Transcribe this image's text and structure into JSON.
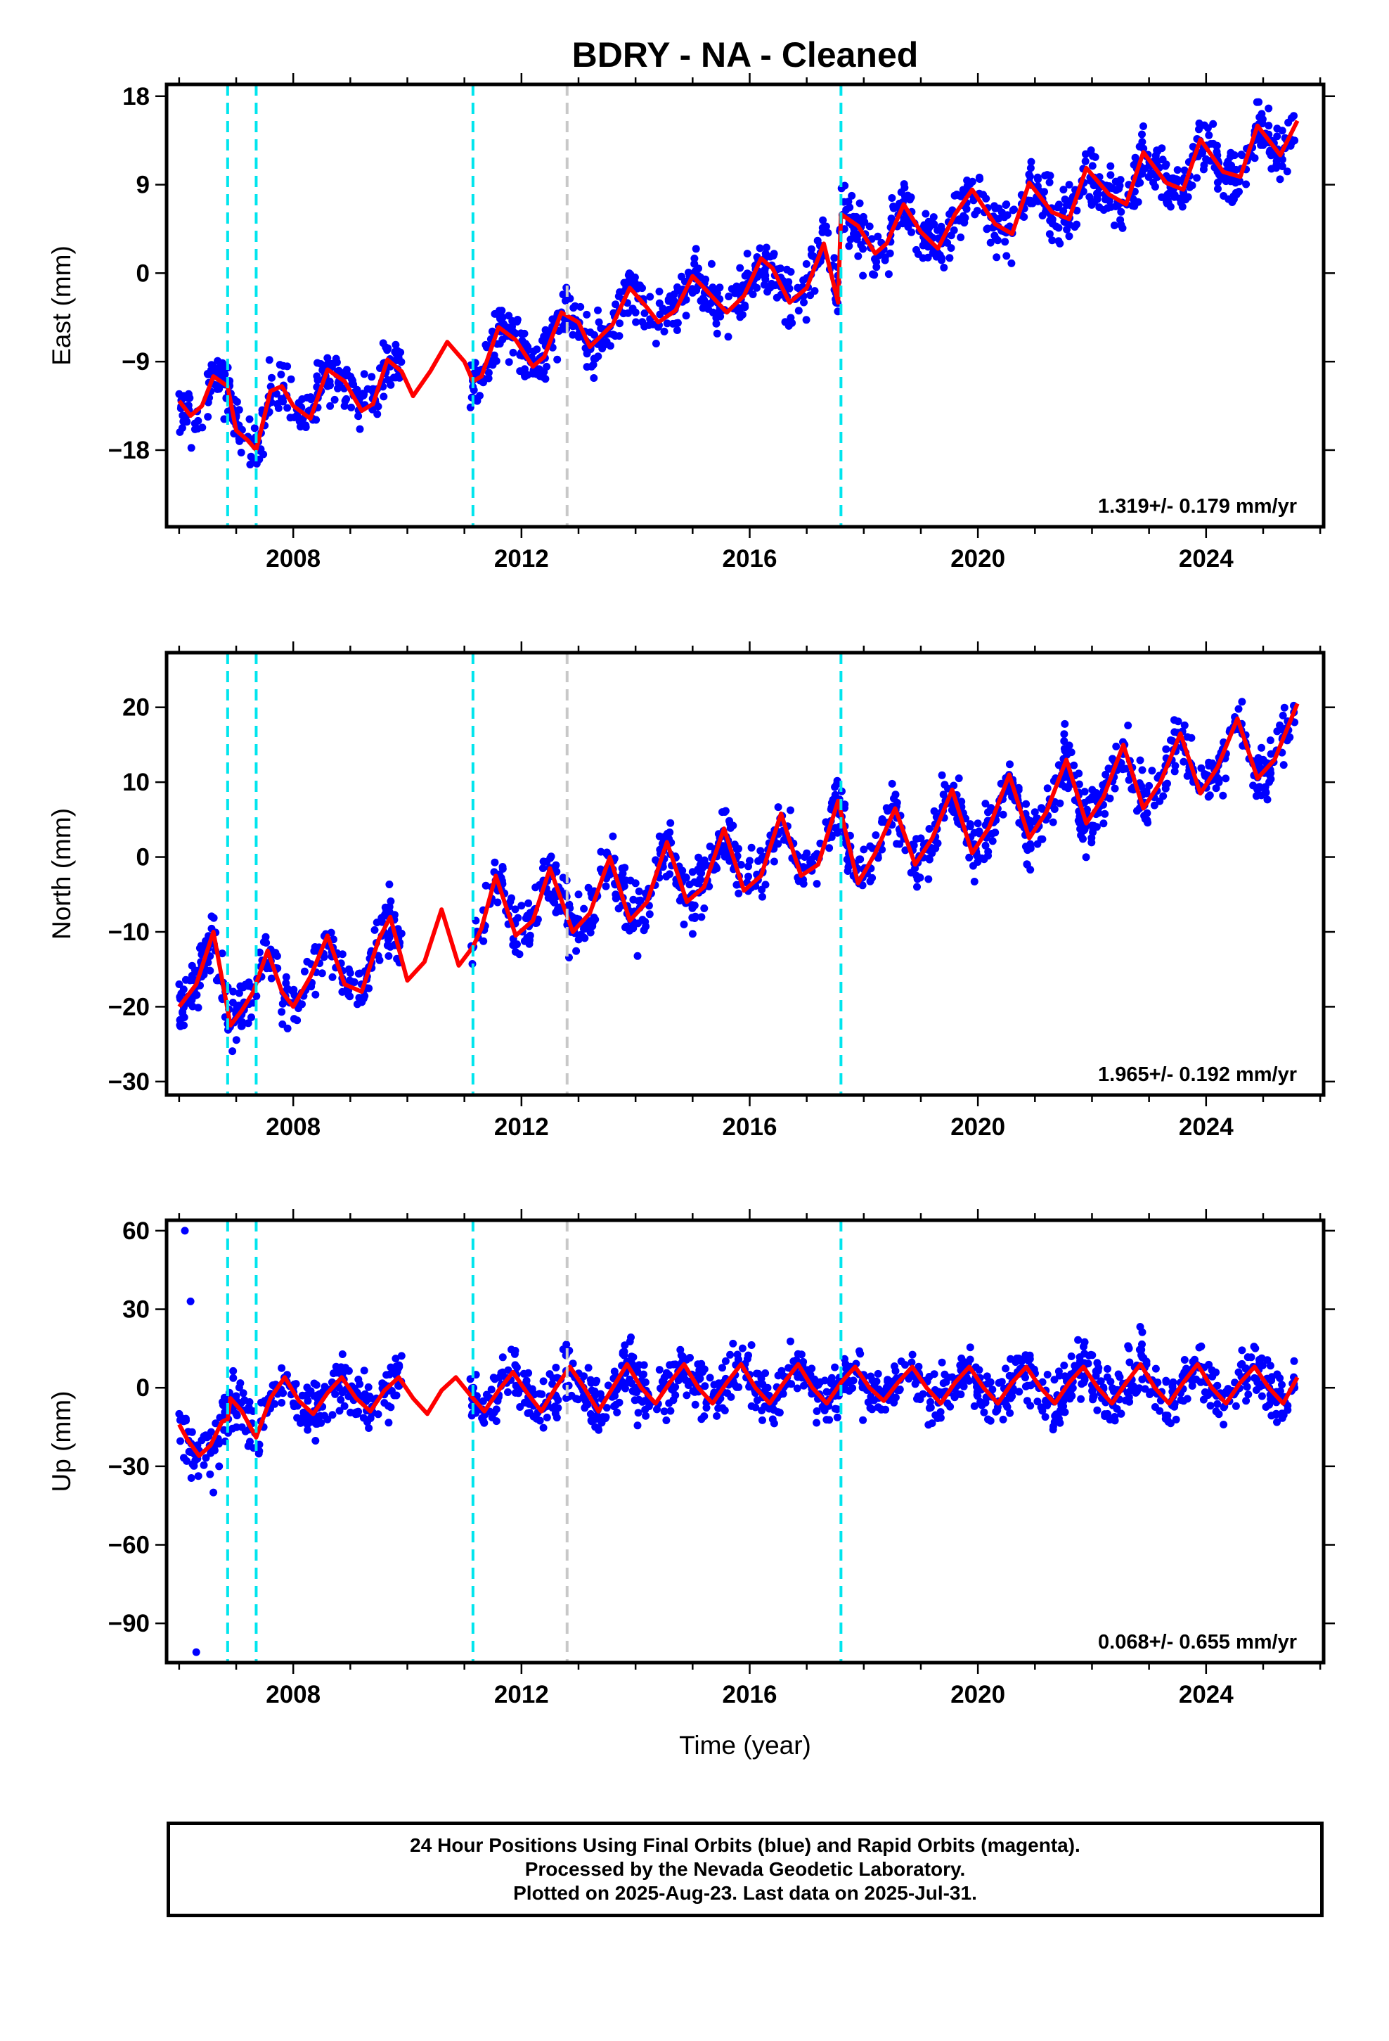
{
  "title": "BDRY  - NA - Cleaned",
  "footer": {
    "lines": [
      "24 Hour Positions Using Final Orbits (blue) and Rapid Orbits (magenta).",
      "Processed by the Nevada Geodetic Laboratory.",
      "Plotted on 2025-Aug-23. Last data on 2025-Jul-31."
    ]
  },
  "colors": {
    "observations": "#0000ff",
    "model_fit": "#ff0000",
    "equipment_change": "#00e5ee",
    "other_event": "#c8c8c8",
    "frame": "#000000"
  },
  "chart_data": [
    {
      "type": "scatter",
      "ylabel": "East (mm)",
      "xlabel": "",
      "xlim": [
        2005.78,
        2026.06
      ],
      "ylim": [
        -25.8,
        19.2
      ],
      "xticks": [
        2008,
        2012,
        2016,
        2020,
        2024
      ],
      "yticks": [
        -18,
        -9,
        0,
        9,
        18
      ],
      "grid": false,
      "rate_label": "1.319+/- 0.179 mm/yr",
      "events": [
        {
          "x": 2006.85,
          "kind": "equipment"
        },
        {
          "x": 2007.35,
          "kind": "equipment"
        },
        {
          "x": 2011.15,
          "kind": "equipment"
        },
        {
          "x": 2012.8,
          "kind": "other"
        },
        {
          "x": 2017.6,
          "kind": "equipment"
        }
      ],
      "series": [
        {
          "role": "observations",
          "x": [
            2006.0,
            2007.0,
            2007.5,
            2008.6,
            2009.7,
            2011.2,
            2012.0,
            2013.0,
            2014.0,
            2015.0,
            2016.0,
            2017.0,
            2017.6,
            2018.5,
            2019.5,
            2020.5,
            2021.5,
            2022.5,
            2023.5,
            2024.5,
            2025.55
          ],
          "y": [
            -12.3,
            -14.5,
            -15.5,
            -11.5,
            -9.5,
            -10.5,
            -7.0,
            -5.5,
            -4.0,
            -2.0,
            -1.5,
            -0.5,
            4.5,
            5.0,
            6.0,
            7.0,
            8.5,
            9.5,
            10.5,
            12.0,
            13.5
          ]
        },
        {
          "role": "model",
          "x": [
            2006.0,
            2006.2,
            2006.4,
            2006.6,
            2006.85,
            2007.0,
            2007.2,
            2007.35,
            2007.6,
            2007.8,
            2008.0,
            2008.3,
            2008.6,
            2008.9,
            2009.2,
            2009.4,
            2009.65,
            2009.9,
            2010.1,
            2010.4,
            2010.7,
            2011.0,
            2011.15,
            2011.3,
            2011.6,
            2011.9,
            2012.2,
            2012.4,
            2012.7,
            2013.0,
            2013.2,
            2013.6,
            2013.9,
            2014.2,
            2014.4,
            2014.7,
            2015.0,
            2015.2,
            2015.6,
            2015.9,
            2016.2,
            2016.4,
            2016.7,
            2017.0,
            2017.3,
            2017.55,
            2017.6,
            2017.9,
            2018.2,
            2018.4,
            2018.7,
            2019.0,
            2019.3,
            2019.6,
            2019.9,
            2020.3,
            2020.6,
            2020.9,
            2021.3,
            2021.6,
            2021.9,
            2022.3,
            2022.6,
            2022.9,
            2023.3,
            2023.6,
            2023.9,
            2024.3,
            2024.6,
            2024.9,
            2025.3,
            2025.6
          ],
          "y": [
            -13.0,
            -14.5,
            -13.5,
            -10.5,
            -11.5,
            -16.0,
            -17.0,
            -18.0,
            -12.0,
            -11.5,
            -13.5,
            -14.8,
            -9.8,
            -11.0,
            -14.0,
            -13.3,
            -8.8,
            -10.0,
            -12.5,
            -10.0,
            -7.0,
            -9.0,
            -11.0,
            -10.5,
            -5.5,
            -6.8,
            -9.5,
            -8.5,
            -4.0,
            -5.0,
            -7.5,
            -5.2,
            -1.5,
            -3.5,
            -5.0,
            -3.8,
            -0.3,
            -1.5,
            -4.0,
            -2.3,
            1.5,
            0.5,
            -3.0,
            -1.5,
            3.0,
            -3.0,
            6.0,
            4.8,
            2.0,
            3.0,
            7.0,
            4.2,
            2.5,
            6.0,
            8.5,
            5.0,
            4.0,
            9.2,
            6.2,
            5.5,
            10.7,
            8.0,
            7.0,
            12.3,
            9.2,
            8.5,
            13.6,
            10.3,
            9.8,
            15.0,
            12.0,
            15.5
          ]
        }
      ]
    },
    {
      "type": "scatter",
      "ylabel": "North (mm)",
      "xlabel": "",
      "xlim": [
        2005.78,
        2026.06
      ],
      "ylim": [
        -31.8,
        27.3
      ],
      "xticks": [
        2008,
        2012,
        2016,
        2020,
        2024
      ],
      "yticks": [
        -30,
        -20,
        -10,
        0,
        10,
        20
      ],
      "grid": false,
      "rate_label": "1.965+/- 0.192 mm/yr",
      "events": [
        {
          "x": 2006.85,
          "kind": "equipment"
        },
        {
          "x": 2007.35,
          "kind": "equipment"
        },
        {
          "x": 2011.15,
          "kind": "equipment"
        },
        {
          "x": 2012.8,
          "kind": "other"
        },
        {
          "x": 2017.6,
          "kind": "equipment"
        }
      ],
      "series": [
        {
          "role": "observations",
          "x": [
            2006.0,
            2007.0,
            2008.0,
            2009.0,
            2009.7,
            2011.2,
            2012.0,
            2013.0,
            2014.0,
            2015.0,
            2016.0,
            2017.0,
            2018.0,
            2019.0,
            2020.0,
            2021.0,
            2022.0,
            2023.0,
            2024.0,
            2025.0,
            2025.55
          ],
          "y": [
            -17.0,
            -21.0,
            -18.0,
            -15.5,
            -12.0,
            -8.5,
            -6.5,
            -5.0,
            -3.5,
            -2.0,
            -0.5,
            0.5,
            1.0,
            2.5,
            4.5,
            6.0,
            8.0,
            9.5,
            11.0,
            13.0,
            18.0
          ]
        },
        {
          "role": "model",
          "x": [
            2006.0,
            2006.3,
            2006.6,
            2006.9,
            2007.1,
            2007.3,
            2007.55,
            2007.8,
            2008.0,
            2008.3,
            2008.6,
            2008.9,
            2009.2,
            2009.5,
            2009.7,
            2010.0,
            2010.3,
            2010.6,
            2010.9,
            2011.15,
            2011.3,
            2011.55,
            2011.9,
            2012.2,
            2012.5,
            2012.9,
            2013.2,
            2013.55,
            2013.9,
            2014.2,
            2014.55,
            2014.9,
            2015.2,
            2015.55,
            2015.9,
            2016.2,
            2016.55,
            2016.9,
            2017.2,
            2017.55,
            2017.9,
            2018.2,
            2018.55,
            2018.9,
            2019.2,
            2019.55,
            2019.9,
            2020.2,
            2020.55,
            2020.9,
            2021.2,
            2021.55,
            2021.9,
            2022.2,
            2022.55,
            2022.9,
            2023.2,
            2023.55,
            2023.9,
            2024.2,
            2024.55,
            2024.9,
            2025.2,
            2025.6
          ],
          "y": [
            -20.0,
            -17.0,
            -10.0,
            -22.5,
            -20.5,
            -18.0,
            -12.5,
            -18.0,
            -20.0,
            -16.0,
            -10.5,
            -17.0,
            -18.0,
            -11.0,
            -8.0,
            -16.5,
            -14.0,
            -7.0,
            -14.5,
            -12.0,
            -9.5,
            -2.5,
            -10.5,
            -8.5,
            -1.5,
            -10.0,
            -7.5,
            0.0,
            -8.5,
            -6.0,
            2.0,
            -6.0,
            -4.0,
            3.8,
            -4.5,
            -2.5,
            5.8,
            -2.5,
            -1.0,
            7.5,
            -3.5,
            0.5,
            6.5,
            -1.0,
            2.5,
            9.0,
            0.5,
            4.0,
            11.0,
            2.5,
            6.0,
            13.0,
            4.5,
            8.0,
            15.0,
            6.5,
            10.0,
            16.5,
            8.5,
            12.0,
            18.5,
            10.5,
            13.0,
            20.5
          ]
        }
      ]
    },
    {
      "type": "scatter",
      "ylabel": "Up (mm)",
      "xlabel": "Time (year)",
      "xlim": [
        2005.78,
        2026.06
      ],
      "ylim": [
        -105,
        64
      ],
      "xticks": [
        2008,
        2012,
        2016,
        2020,
        2024
      ],
      "yticks": [
        -90,
        -60,
        -30,
        0,
        30,
        60
      ],
      "grid": false,
      "rate_label": "0.068+/- 0.655 mm/yr",
      "events": [
        {
          "x": 2006.85,
          "kind": "equipment"
        },
        {
          "x": 2007.35,
          "kind": "equipment"
        },
        {
          "x": 2011.15,
          "kind": "equipment"
        },
        {
          "x": 2012.8,
          "kind": "other"
        },
        {
          "x": 2017.6,
          "kind": "equipment"
        }
      ],
      "series": [
        {
          "role": "observations",
          "x": [
            2006.0,
            2006.1,
            2006.2,
            2006.3,
            2006.6,
            2006.7,
            2007.0,
            2007.5,
            2008.0,
            2009.0,
            2009.8,
            2011.2,
            2012.0,
            2013.0,
            2014.0,
            2015.0,
            2016.0,
            2017.0,
            2018.0,
            2019.0,
            2020.0,
            2021.0,
            2022.0,
            2023.0,
            2024.0,
            2025.0,
            2025.55
          ],
          "y": [
            -10.0,
            60.0,
            33.0,
            -101.0,
            -40.0,
            -30.0,
            -10.0,
            -5.0,
            0.0,
            -2.0,
            5.0,
            -5.0,
            0.0,
            2.0,
            0.0,
            3.0,
            5.0,
            4.0,
            2.0,
            3.0,
            0.0,
            2.0,
            1.0,
            3.0,
            4.0,
            1.0,
            0.0
          ]
        },
        {
          "role": "model",
          "x": [
            2006.0,
            2006.15,
            2006.35,
            2006.55,
            2006.75,
            2006.85,
            2006.9,
            2007.1,
            2007.35,
            2007.6,
            2007.85,
            2008.1,
            2008.35,
            2008.6,
            2008.85,
            2009.1,
            2009.35,
            2009.6,
            2009.85,
            2010.1,
            2010.35,
            2010.6,
            2010.85,
            2011.15,
            2011.35,
            2011.6,
            2011.85,
            2012.1,
            2012.35,
            2012.6,
            2012.85,
            2013.1,
            2013.35,
            2013.6,
            2013.85,
            2014.1,
            2014.35,
            2014.6,
            2014.85,
            2015.1,
            2015.35,
            2015.6,
            2015.85,
            2016.1,
            2016.35,
            2016.6,
            2016.85,
            2017.1,
            2017.35,
            2017.6,
            2017.85,
            2018.1,
            2018.35,
            2018.6,
            2018.85,
            2019.1,
            2019.35,
            2019.6,
            2019.85,
            2020.1,
            2020.35,
            2020.6,
            2020.85,
            2021.1,
            2021.35,
            2021.6,
            2021.85,
            2022.1,
            2022.35,
            2022.6,
            2022.85,
            2023.1,
            2023.35,
            2023.6,
            2023.85,
            2024.1,
            2024.35,
            2024.6,
            2024.85,
            2025.1,
            2025.35,
            2025.6
          ],
          "y": [
            -14.0,
            -20.0,
            -26.0,
            -22.0,
            -13.0,
            -12.0,
            -4.0,
            -9.0,
            -19.0,
            -4.0,
            4.0,
            -5.0,
            -10.0,
            -2.0,
            4.0,
            -4.0,
            -9.0,
            -1.0,
            4.0,
            -4.0,
            -10.0,
            -1.0,
            4.0,
            -4.0,
            -9.0,
            -1.0,
            6.0,
            -2.0,
            -9.0,
            0.0,
            8.0,
            0.0,
            -9.0,
            0.0,
            9.0,
            0.0,
            -6.0,
            2.0,
            9.0,
            0.0,
            -6.0,
            2.0,
            9.0,
            0.0,
            -6.0,
            2.0,
            9.0,
            0.0,
            -6.0,
            2.0,
            8.0,
            0.0,
            -5.0,
            2.0,
            8.0,
            0.0,
            -6.0,
            2.0,
            8.0,
            0.0,
            -6.0,
            2.0,
            8.0,
            0.0,
            -6.0,
            2.0,
            8.0,
            0.0,
            -6.0,
            2.0,
            9.0,
            0.0,
            -6.0,
            2.0,
            9.0,
            0.0,
            -6.0,
            2.0,
            8.0,
            0.0,
            -6.0,
            4.0
          ]
        }
      ]
    }
  ]
}
